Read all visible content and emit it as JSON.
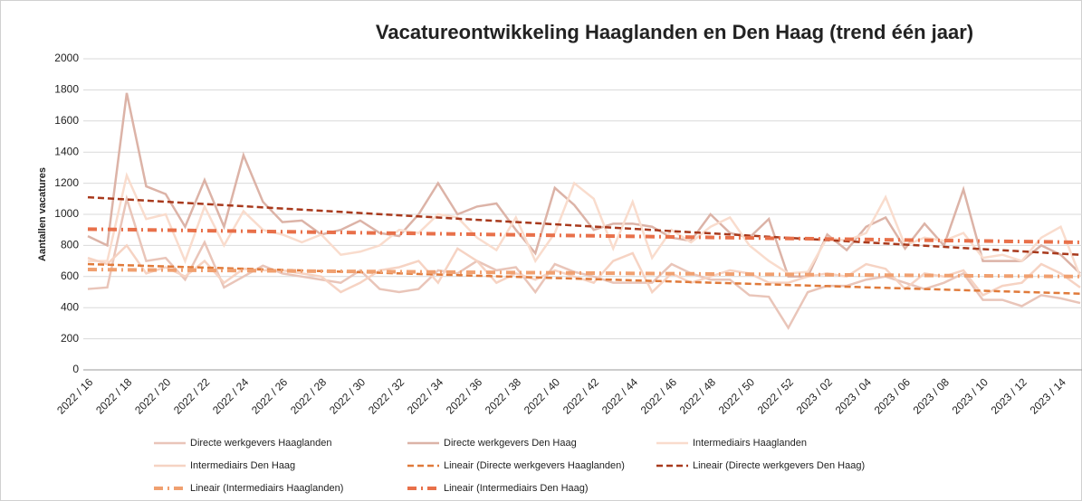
{
  "chart_data": {
    "type": "line",
    "title": "Vacatureontwikkeling Haaglanden en Den Haag (trend één jaar)",
    "y_label": "Aantallen vacatures",
    "categories": [
      "2022 / 16",
      null,
      "2022 / 18",
      null,
      "2022 / 20",
      null,
      "2022 / 22",
      null,
      "2022 / 24",
      null,
      "2022 / 26",
      null,
      "2022 / 28",
      null,
      "2022 / 30",
      null,
      "2022 / 32",
      null,
      "2022 / 34",
      null,
      "2022 / 36",
      null,
      "2022 / 38",
      null,
      "2022 / 40",
      null,
      "2022 / 42",
      null,
      "2022 / 44",
      null,
      "2022 / 46",
      null,
      "2022 / 48",
      null,
      "2022 / 50",
      null,
      "2022 / 52",
      null,
      "2023 / 02",
      null,
      "2023 / 04",
      null,
      "2023 / 06",
      null,
      "2023 / 08",
      null,
      "2023 / 10",
      null,
      "2023 / 12",
      null,
      "2023 / 14",
      null
    ],
    "ylim": [
      0,
      2000
    ],
    "yticks": [
      0,
      200,
      400,
      600,
      800,
      1000,
      1200,
      1400,
      1600,
      1800,
      2000
    ],
    "grid": true,
    "series": [
      {
        "name": "Directe werkgevers Haaglanden",
        "color": "#e9c5b9",
        "values": [
          520,
          530,
          1100,
          700,
          720,
          580,
          820,
          530,
          600,
          670,
          620,
          600,
          580,
          560,
          640,
          520,
          500,
          520,
          640,
          620,
          700,
          640,
          660,
          500,
          680,
          630,
          600,
          560,
          560,
          560,
          680,
          620,
          580,
          580,
          480,
          470,
          270,
          500,
          540,
          540,
          580,
          600,
          560,
          520,
          560,
          620,
          450,
          450,
          410,
          480,
          460,
          430
        ]
      },
      {
        "name": "Directe werkgevers Den Haag",
        "color": "#dcb3a7",
        "values": [
          860,
          800,
          1780,
          1180,
          1130,
          920,
          1220,
          920,
          1380,
          1080,
          950,
          960,
          870,
          900,
          960,
          880,
          860,
          1000,
          1200,
          1000,
          1050,
          1070,
          900,
          750,
          1170,
          1060,
          900,
          940,
          940,
          920,
          850,
          830,
          1000,
          880,
          850,
          970,
          600,
          600,
          870,
          770,
          920,
          980,
          780,
          940,
          800,
          1160,
          700,
          700,
          700,
          800,
          740,
          620
        ]
      },
      {
        "name": "Intermediairs Haaglanden",
        "color": "#f9dccd",
        "values": [
          700,
          700,
          1250,
          970,
          1000,
          700,
          1050,
          800,
          1020,
          900,
          870,
          820,
          870,
          740,
          760,
          800,
          900,
          880,
          1000,
          980,
          850,
          770,
          980,
          700,
          880,
          1200,
          1100,
          780,
          1080,
          720,
          900,
          820,
          920,
          980,
          800,
          700,
          620,
          630,
          850,
          830,
          880,
          1110,
          800,
          850,
          830,
          880,
          720,
          740,
          700,
          850,
          920,
          600
        ]
      },
      {
        "name": "Intermediairs Den Haag",
        "color": "#f6d3c3",
        "values": [
          720,
          680,
          800,
          620,
          660,
          600,
          700,
          560,
          650,
          640,
          640,
          620,
          600,
          500,
          560,
          640,
          660,
          700,
          560,
          780,
          700,
          560,
          620,
          580,
          640,
          600,
          560,
          700,
          750,
          500,
          620,
          560,
          600,
          640,
          620,
          560,
          560,
          600,
          620,
          600,
          680,
          650,
          520,
          620,
          600,
          640,
          480,
          540,
          560,
          680,
          620,
          530
        ]
      }
    ],
    "trendlines": [
      {
        "name": "Lineair (Directe werkgevers Haaglanden)",
        "color": "#e07a3a",
        "dash": "dashed",
        "start": 680,
        "end": 490
      },
      {
        "name": "Lineair (Directe werkgevers Den Haag)",
        "color": "#a8391c",
        "dash": "dashed",
        "start": 1110,
        "end": 740
      },
      {
        "name": "Lineair (Intermediairs Haaglanden)",
        "color": "#f0a070",
        "dash": "dashdot",
        "start": 645,
        "end": 600
      },
      {
        "name": "Lineair (Intermediairs Den Haag)",
        "color": "#e8704a",
        "dash": "dashdot",
        "start": 905,
        "end": 820
      }
    ]
  }
}
